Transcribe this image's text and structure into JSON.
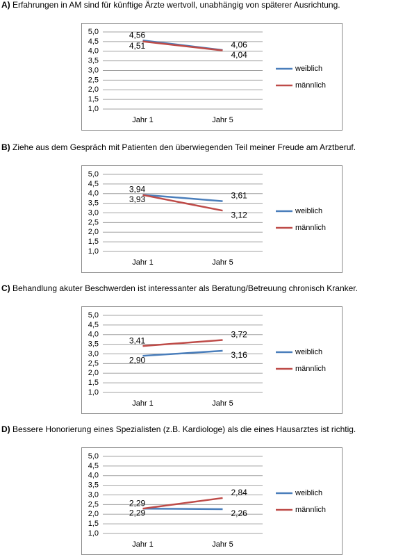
{
  "chart_data": [
    {
      "type": "line",
      "panel": "A)",
      "title": "Erfahrungen in AM sind für künftige Ärzte wertvoll, unabhängig von späterer Ausrichtung.",
      "categories": [
        "Jahr 1",
        "Jahr 5"
      ],
      "series": [
        {
          "name": "weiblich",
          "color": "#4a7ebb",
          "values": [
            4.56,
            4.06
          ],
          "value_labels": [
            "4,56",
            "4,06"
          ]
        },
        {
          "name": "männlich",
          "color": "#be4b48",
          "values": [
            4.51,
            4.04
          ],
          "value_labels": [
            "4,51",
            "4,04"
          ]
        }
      ],
      "ylim": [
        1,
        5
      ],
      "yticks": [
        {
          "value": 1,
          "label": "1,0"
        },
        {
          "value": 1.5,
          "label": "1,5"
        },
        {
          "value": 2,
          "label": "2,0"
        },
        {
          "value": 2.5,
          "label": "2,5"
        },
        {
          "value": 3,
          "label": "3,0"
        },
        {
          "value": 3.5,
          "label": "3,5"
        },
        {
          "value": 4,
          "label": "4,0"
        },
        {
          "value": 4.5,
          "label": "4,5"
        },
        {
          "value": 5,
          "label": "5,0"
        }
      ],
      "grid": true,
      "legend": "right"
    },
    {
      "type": "line",
      "panel": "B)",
      "title": "Ziehe aus dem Gespräch mit Patienten den überwiegenden Teil meiner Freude am Arztberuf.",
      "categories": [
        "Jahr 1",
        "Jahr 5"
      ],
      "series": [
        {
          "name": "weiblich",
          "color": "#4a7ebb",
          "values": [
            3.94,
            3.61
          ],
          "value_labels": [
            "3,94",
            "3,61"
          ]
        },
        {
          "name": "männlich",
          "color": "#be4b48",
          "values": [
            3.93,
            3.12
          ],
          "value_labels": [
            "3,93",
            "3,12"
          ]
        }
      ],
      "ylim": [
        1,
        5
      ],
      "yticks": [
        {
          "value": 1,
          "label": "1,0"
        },
        {
          "value": 1.5,
          "label": "1,5"
        },
        {
          "value": 2,
          "label": "2,0"
        },
        {
          "value": 2.5,
          "label": "2,5"
        },
        {
          "value": 3,
          "label": "3,0"
        },
        {
          "value": 3.5,
          "label": "3,5"
        },
        {
          "value": 4,
          "label": "4,0"
        },
        {
          "value": 4.5,
          "label": "4,5"
        },
        {
          "value": 5,
          "label": "5,0"
        }
      ],
      "grid": true,
      "legend": "right"
    },
    {
      "type": "line",
      "panel": "C)",
      "title": "Behandlung akuter Beschwerden ist interessanter als Beratung/Betreuung chronisch Kranker.",
      "categories": [
        "Jahr 1",
        "Jahr 5"
      ],
      "series": [
        {
          "name": "weiblich",
          "color": "#4a7ebb",
          "values": [
            2.9,
            3.16
          ],
          "value_labels": [
            "2,90",
            "3,16"
          ]
        },
        {
          "name": "männlich",
          "color": "#be4b48",
          "values": [
            3.41,
            3.72
          ],
          "value_labels": [
            "3,41",
            "3,72"
          ]
        }
      ],
      "ylim": [
        1,
        5
      ],
      "yticks": [
        {
          "value": 1,
          "label": "1,0"
        },
        {
          "value": 1.5,
          "label": "1,5"
        },
        {
          "value": 2,
          "label": "2,0"
        },
        {
          "value": 2.5,
          "label": "2,5"
        },
        {
          "value": 3,
          "label": "3,0"
        },
        {
          "value": 3.5,
          "label": "3,5"
        },
        {
          "value": 4,
          "label": "4,0"
        },
        {
          "value": 4.5,
          "label": "4,5"
        },
        {
          "value": 5,
          "label": "5,0"
        }
      ],
      "grid": true,
      "legend": "right"
    },
    {
      "type": "line",
      "panel": "D)",
      "title": "Bessere Honorierung eines Spezialisten (z.B. Kardiologe) als die eines Hausarztes ist richtig.",
      "categories": [
        "Jahr 1",
        "Jahr 5"
      ],
      "series": [
        {
          "name": "weiblich",
          "color": "#4a7ebb",
          "values": [
            2.29,
            2.26
          ],
          "value_labels": [
            "2,29",
            "2,26"
          ]
        },
        {
          "name": "männlich",
          "color": "#be4b48",
          "values": [
            2.29,
            2.84
          ],
          "value_labels": [
            "2,29",
            "2,84"
          ]
        }
      ],
      "ylim": [
        1,
        5
      ],
      "yticks": [
        {
          "value": 1,
          "label": "1,0"
        },
        {
          "value": 1.5,
          "label": "1,5"
        },
        {
          "value": 2,
          "label": "2,0"
        },
        {
          "value": 2.5,
          "label": "2,5"
        },
        {
          "value": 3,
          "label": "3,0"
        },
        {
          "value": 3.5,
          "label": "3,5"
        },
        {
          "value": 4,
          "label": "4,0"
        },
        {
          "value": 4.5,
          "label": "4,5"
        },
        {
          "value": 5,
          "label": "5,0"
        }
      ],
      "grid": true,
      "legend": "right"
    }
  ]
}
